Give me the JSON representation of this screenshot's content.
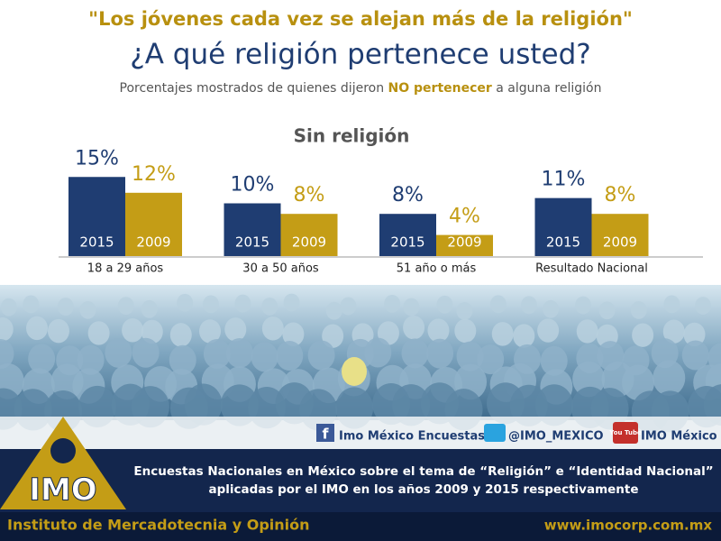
{
  "header": {
    "quote": "\"Los jóvenes cada vez se alejan más de la religión\"",
    "question": "¿A qué religión pertenece usted?",
    "subtitle_start": "Porcentajes mostrados de quienes dijeron ",
    "subtitle_emphasis": "NO pertenecer",
    "subtitle_end": " a alguna religión"
  },
  "chart_data": {
    "type": "bar",
    "title": "Sin religión",
    "categories": [
      "18 a 29 años",
      "30 a 50 años",
      "51 año o más",
      "Resultado Nacional"
    ],
    "series": [
      {
        "name": "2015",
        "color": "#1f3d72",
        "values": [
          15,
          10,
          8,
          11
        ],
        "value_labels": [
          "15%",
          "10%",
          "8%",
          "11%"
        ]
      },
      {
        "name": "2009",
        "color": "#c49d16",
        "values": [
          12,
          8,
          4,
          8
        ],
        "value_labels": [
          "12%",
          "8%",
          "4%",
          "8%"
        ]
      }
    ]
  },
  "social": {
    "facebook": "Imo México Encuestas",
    "twitter": "@IMO_MEXICO",
    "youtube_icon": "You Tube",
    "youtube": "IMO México"
  },
  "footer": {
    "logo": "IMO",
    "line1": "Encuestas Nacionales en México sobre el tema de “Religión” e “Identidad Nacional”",
    "line2": "aplicadas por el IMO en los años 2009 y 2015 respectivamente",
    "institute": "Instituto de Mercadotecnia y Opinión",
    "url": "www.imocorp.com.mx"
  }
}
